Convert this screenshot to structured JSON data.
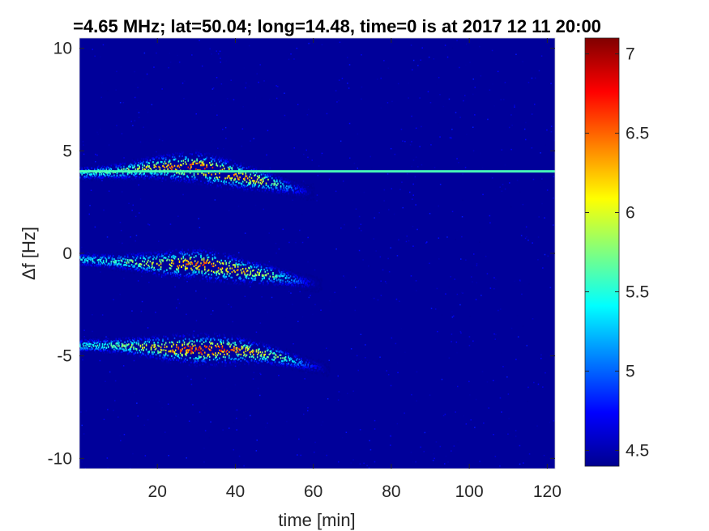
{
  "chart_data": {
    "type": "heatmap",
    "title": "=4.65 MHz;  lat=50.04; long=14.48, time=0 is at 2017 12 11 20:00",
    "xlabel": "time [min]",
    "ylabel": "Δf [Hz]",
    "xlim": [
      0,
      122
    ],
    "ylim": [
      -10.5,
      10.5
    ],
    "xticks": [
      20,
      40,
      60,
      80,
      100,
      120
    ],
    "yticks": [
      10,
      5,
      0,
      -5,
      -10
    ],
    "xtick_labels": [
      "20",
      "40",
      "60",
      "80",
      "100",
      "120"
    ],
    "ytick_labels": [
      "10",
      "5",
      "0",
      "-5",
      "-10"
    ],
    "colorbar": {
      "range": [
        4.4,
        7.1
      ],
      "ticks": [
        7,
        6.5,
        6,
        5.5,
        5,
        4.5
      ],
      "tick_labels": [
        "7",
        "6.5",
        "6",
        "5.5",
        "5",
        "4.5"
      ],
      "colormap": "jet"
    },
    "background_value": 4.45,
    "bands": [
      {
        "description": "upper Doppler trace",
        "time_start": 0,
        "time_end": 60,
        "freq_points": [
          [
            0,
            3.9
          ],
          [
            10,
            4.0
          ],
          [
            20,
            4.2
          ],
          [
            30,
            4.2
          ],
          [
            40,
            3.8
          ],
          [
            50,
            3.4
          ],
          [
            58,
            3.0
          ]
        ],
        "peak_value": 7.0
      },
      {
        "description": "middle Doppler trace",
        "time_start": 0,
        "time_end": 62,
        "freq_points": [
          [
            0,
            -0.3
          ],
          [
            10,
            -0.4
          ],
          [
            20,
            -0.5
          ],
          [
            30,
            -0.5
          ],
          [
            40,
            -0.8
          ],
          [
            50,
            -1.1
          ],
          [
            60,
            -1.5
          ]
        ],
        "peak_value": 6.8
      },
      {
        "description": "lower Doppler trace",
        "time_start": 0,
        "time_end": 64,
        "freq_points": [
          [
            0,
            -4.5
          ],
          [
            10,
            -4.5
          ],
          [
            20,
            -4.6
          ],
          [
            30,
            -4.7
          ],
          [
            40,
            -4.7
          ],
          [
            50,
            -5.0
          ],
          [
            60,
            -5.5
          ],
          [
            64,
            -5.7
          ]
        ],
        "peak_value": 7.0
      },
      {
        "description": "constant carrier line",
        "time_start": 0,
        "time_end": 122,
        "freq_points": [
          [
            0,
            4.0
          ],
          [
            122,
            4.0
          ]
        ],
        "peak_value": 5.6
      }
    ],
    "grid": false
  }
}
